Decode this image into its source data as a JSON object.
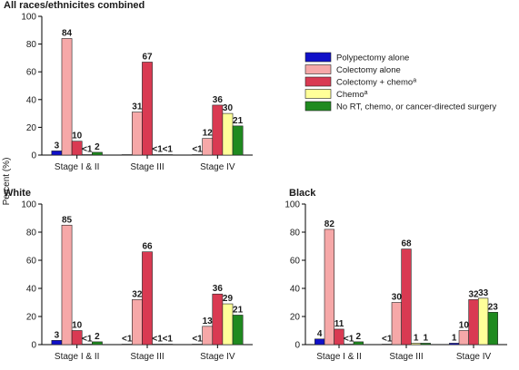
{
  "ylabel": "Percent (%)",
  "legend": [
    {
      "label": "Polypectomy alone",
      "color": "#1010c8"
    },
    {
      "label": "Colectomy alone",
      "color": "#f6a8a8"
    },
    {
      "label": "Colectomy + chemo",
      "sup": "a",
      "color": "#d93a52"
    },
    {
      "label": "Chemo",
      "sup": "a",
      "color": "#ffff99"
    },
    {
      "label": "No RT, chemo, or cancer-directed surgery",
      "color": "#1f8a1f"
    }
  ],
  "chart_data": [
    {
      "type": "bar",
      "title": "All races/ethnicites combined",
      "categories": [
        "Stage I & II",
        "Stage III",
        "Stage IV"
      ],
      "ylim": [
        0,
        100
      ],
      "yticks": [
        "0",
        "20",
        "40",
        "60",
        "80",
        "100"
      ],
      "series": [
        {
          "name": "Polypectomy alone",
          "values": [
            3,
            0.3,
            0.3
          ],
          "labels": [
            "3",
            "",
            "<1"
          ]
        },
        {
          "name": "Colectomy alone",
          "values": [
            84,
            31,
            12
          ],
          "labels": [
            "84",
            "31",
            "12"
          ]
        },
        {
          "name": "Colectomy + chemo",
          "values": [
            10,
            67,
            36
          ],
          "labels": [
            "10",
            "67",
            "36"
          ]
        },
        {
          "name": "Chemo",
          "values": [
            0.3,
            0.3,
            30
          ],
          "labels": [
            "<1",
            "<1",
            "30"
          ]
        },
        {
          "name": "No RT, chemo, or cancer-directed surgery",
          "values": [
            2,
            0.3,
            21
          ],
          "labels": [
            "2",
            "<1",
            "21"
          ]
        }
      ]
    },
    {
      "type": "bar",
      "title": "White",
      "categories": [
        "Stage I & II",
        "Stage III",
        "Stage IV"
      ],
      "ylim": [
        0,
        100
      ],
      "yticks": [
        "0",
        "20",
        "40",
        "60",
        "80",
        "100"
      ],
      "series": [
        {
          "name": "Polypectomy alone",
          "values": [
            3,
            0.3,
            0.3
          ],
          "labels": [
            "3",
            "<1",
            "<1"
          ]
        },
        {
          "name": "Colectomy alone",
          "values": [
            85,
            32,
            13
          ],
          "labels": [
            "85",
            "32",
            "13"
          ]
        },
        {
          "name": "Colectomy + chemo",
          "values": [
            10,
            66,
            36
          ],
          "labels": [
            "10",
            "66",
            "36"
          ]
        },
        {
          "name": "Chemo",
          "values": [
            0.3,
            0.3,
            29
          ],
          "labels": [
            "<1",
            "<1",
            "29"
          ]
        },
        {
          "name": "No RT, chemo, or cancer-directed surgery",
          "values": [
            2,
            0.3,
            21
          ],
          "labels": [
            "2",
            "<1",
            "21"
          ]
        }
      ]
    },
    {
      "type": "bar",
      "title": "Black",
      "categories": [
        "Stage I & II",
        "Stage III",
        "Stage IV"
      ],
      "ylim": [
        0,
        100
      ],
      "yticks": [
        "0",
        "20",
        "40",
        "60",
        "80",
        "100"
      ],
      "series": [
        {
          "name": "Polypectomy alone",
          "values": [
            4,
            0.3,
            1
          ],
          "labels": [
            "4",
            "<1",
            "1"
          ]
        },
        {
          "name": "Colectomy alone",
          "values": [
            82,
            30,
            10
          ],
          "labels": [
            "82",
            "30",
            "10"
          ]
        },
        {
          "name": "Colectomy + chemo",
          "values": [
            11,
            68,
            32
          ],
          "labels": [
            "11",
            "68",
            "32"
          ]
        },
        {
          "name": "Chemo",
          "values": [
            0.3,
            1,
            33
          ],
          "labels": [
            "<1",
            "1",
            "33"
          ]
        },
        {
          "name": "No RT, chemo, or cancer-directed surgery",
          "values": [
            2,
            1,
            23
          ],
          "labels": [
            "2",
            "1",
            "23"
          ]
        }
      ]
    }
  ]
}
